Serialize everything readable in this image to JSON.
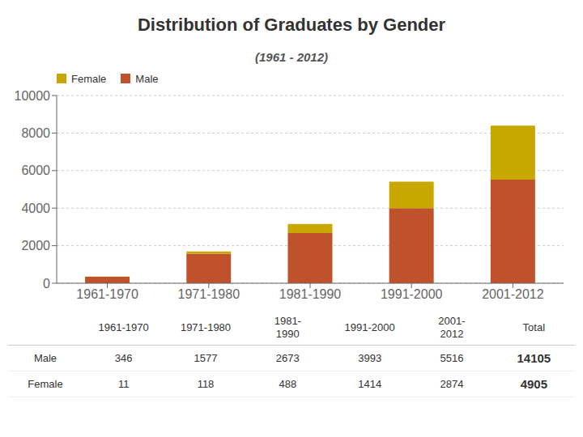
{
  "chart_data": {
    "type": "bar",
    "title": "Distribution of Graduates by Gender",
    "subtitle": "(1961 - 2012)",
    "categories": [
      "1961-1970",
      "1971-1980",
      "1981-1990",
      "1991-2000",
      "2001-2012"
    ],
    "series": [
      {
        "name": "Male",
        "color": "#c0522b",
        "values": [
          346,
          1577,
          2673,
          3993,
          5516
        ]
      },
      {
        "name": "Female",
        "color": "#c8a800",
        "values": [
          11,
          118,
          488,
          1414,
          2874
        ]
      }
    ],
    "stacked": true,
    "ylim": [
      0,
      10000
    ],
    "yticks": [
      0,
      2000,
      4000,
      6000,
      8000,
      10000
    ],
    "grid": true,
    "legend": "upper left",
    "table": {
      "columns": [
        "1961-1970",
        "1971-1980",
        "1981-\n1990",
        "1991-2000",
        "2001-\n2012",
        "Total"
      ],
      "rows": [
        {
          "name": "Male",
          "values": [
            346,
            1577,
            2673,
            3993,
            5516,
            14105
          ]
        },
        {
          "name": "Female",
          "values": [
            11,
            118,
            488,
            1414,
            2874,
            4905
          ]
        }
      ]
    }
  }
}
